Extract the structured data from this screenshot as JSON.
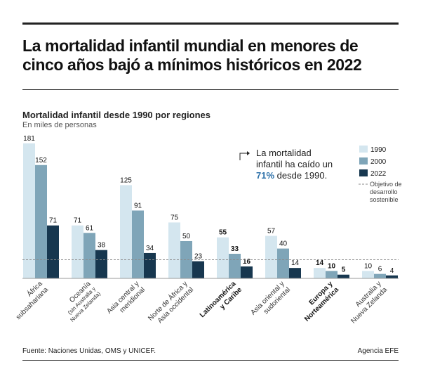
{
  "header": {
    "title": "La mortalidad infantil mundial en menores de cinco años bajó a mínimos históricos en 2022"
  },
  "chart_header": {
    "subtitle": "Mortalidad infantil desde 1990 por regiones",
    "unit": "En miles de personas"
  },
  "annotation": {
    "line1": "La mortalidad",
    "line2": "infantil ha caído un",
    "highlight": "71%",
    "line3_rest": " desde 1990."
  },
  "legend": {
    "items": [
      "1990",
      "2000",
      "2022"
    ],
    "target_label_lines": [
      "Objetivo de",
      "desarrollo",
      "sostenible"
    ]
  },
  "colors": {
    "series_1990": "#d4e6ef",
    "series_2000": "#7fa5b8",
    "series_2022": "#17374f",
    "highlight_text": "#2a6fa8",
    "target_line": "#8a8a8a"
  },
  "chart_data": {
    "type": "bar",
    "unit": "miles de personas",
    "categories": [
      [
        "África",
        "subsahariana"
      ],
      [
        "Oceanía",
        "(sin Australia y",
        "Nueva Zelanda)"
      ],
      [
        "Asia central y",
        "meridional"
      ],
      [
        "Norte de África y",
        "Asia occidental"
      ],
      [
        "Latinoamérica",
        "y Caribe"
      ],
      [
        "Asia oriental y",
        "sudoriental"
      ],
      [
        "Europa y",
        "Norteamérica"
      ],
      [
        "Australia y",
        "Nueva Zelanda"
      ]
    ],
    "highlighted_categories": [
      4,
      6
    ],
    "series": [
      {
        "name": "1990",
        "values": [
          181,
          71,
          125,
          75,
          55,
          57,
          14,
          10
        ]
      },
      {
        "name": "2000",
        "values": [
          152,
          61,
          91,
          50,
          33,
          40,
          10,
          6
        ]
      },
      {
        "name": "2022",
        "values": [
          71,
          38,
          34,
          23,
          16,
          14,
          5,
          4
        ]
      }
    ],
    "target_line_value": 25,
    "ylim": [
      0,
      181
    ]
  },
  "footer": {
    "source": "Fuente: Naciones Unidas, OMS y UNICEF.",
    "agency": "Agencia EFE"
  }
}
